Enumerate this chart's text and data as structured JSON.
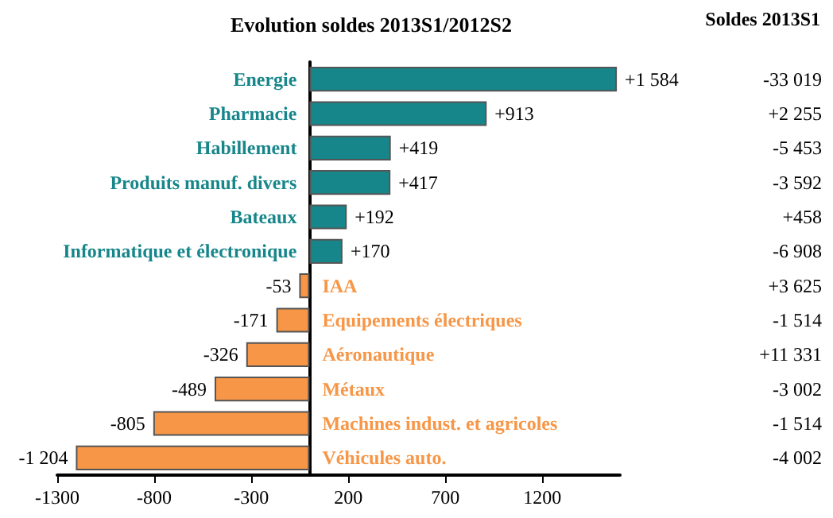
{
  "chart_data": {
    "type": "bar",
    "orientation": "horizontal",
    "title": "Evolution soldes 2013S1/2012S2",
    "categories": [
      "Energie",
      "Pharmacie",
      "Habillement",
      "Produits manuf. divers",
      "Bateaux",
      "Informatique et électronique",
      "IAA",
      "Equipements électriques",
      "Aéronautique",
      "Métaux",
      "Machines indust. et agricoles",
      "Véhicules auto."
    ],
    "values": [
      1584,
      913,
      419,
      417,
      192,
      170,
      -53,
      -171,
      -326,
      -489,
      -805,
      -1204
    ],
    "colors": [
      "#17868a",
      "#17868a",
      "#17868a",
      "#17868a",
      "#17868a",
      "#17868a",
      "#f79646",
      "#f79646",
      "#f79646",
      "#f79646",
      "#f79646",
      "#f79646"
    ],
    "value_labels": [
      "+1 584",
      "+913",
      "+419",
      "+417",
      "+192",
      "+170",
      "-53",
      "-171",
      "-326",
      "-489",
      "-805",
      "-1 204"
    ],
    "xlim": [
      -1300,
      1600
    ],
    "xticks": [
      -1300,
      -800,
      -300,
      200,
      700,
      1200
    ],
    "grid": false,
    "annotations": [
      "Soldes 2013S1",
      "-33 019",
      "+2 255",
      "-5 453",
      "-3 592",
      "+458",
      "-6 908",
      "+3 625",
      "-1 514",
      "+11 331",
      "-3 002",
      "-1 514",
      "-4 002"
    ]
  }
}
